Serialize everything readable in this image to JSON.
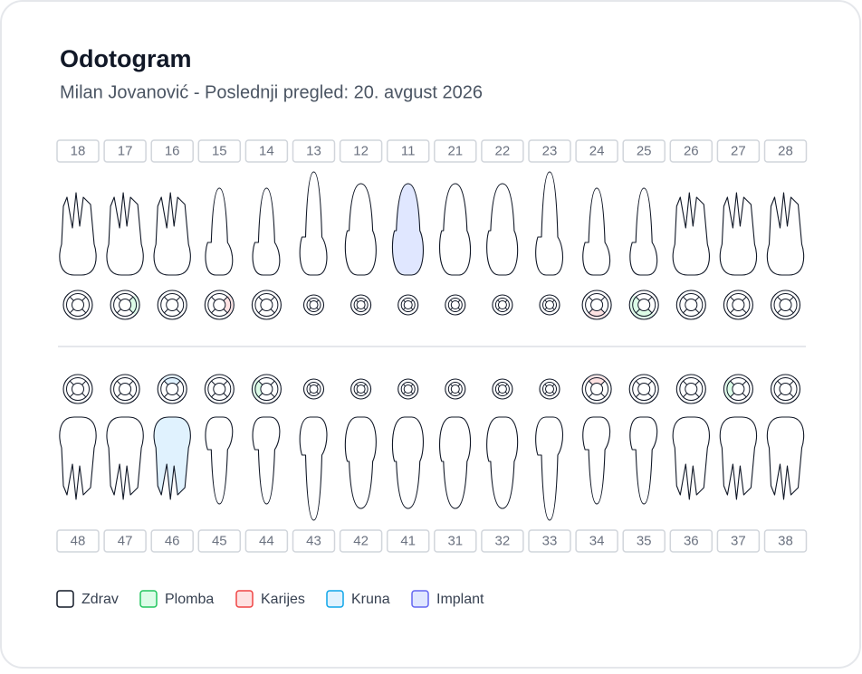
{
  "header": {
    "title": "Odotogram",
    "subtitle": "Milan Jovanović - Poslednji pregled: 20. avgust 2026"
  },
  "upper": [
    {
      "number": "18"
    },
    {
      "number": "17",
      "surfaces": {
        "right": "#dcfce7"
      }
    },
    {
      "number": "16"
    },
    {
      "number": "15",
      "surfaces": {
        "right": "#fee2e2"
      }
    },
    {
      "number": "14"
    },
    {
      "number": "13"
    },
    {
      "number": "12"
    },
    {
      "number": "11",
      "crown": "#e0e7ff"
    },
    {
      "number": "21"
    },
    {
      "number": "22"
    },
    {
      "number": "23"
    },
    {
      "number": "24",
      "surfaces": {
        "bottom": "#fee2e2"
      }
    },
    {
      "number": "25",
      "surfaces": {
        "bottom": "#dcfce7",
        "left": "#dcfce7"
      }
    },
    {
      "number": "26"
    },
    {
      "number": "27"
    },
    {
      "number": "28"
    }
  ],
  "lower": [
    {
      "number": "48"
    },
    {
      "number": "47"
    },
    {
      "number": "46",
      "crown": "#e0f2fe",
      "surfaces": {
        "top": "#e0f2fe"
      }
    },
    {
      "number": "45"
    },
    {
      "number": "44",
      "surfaces": {
        "left": "#dcfce7"
      }
    },
    {
      "number": "43"
    },
    {
      "number": "42"
    },
    {
      "number": "41"
    },
    {
      "number": "31"
    },
    {
      "number": "32"
    },
    {
      "number": "33"
    },
    {
      "number": "34",
      "surfaces": {
        "top": "#fee2e2"
      }
    },
    {
      "number": "35"
    },
    {
      "number": "36"
    },
    {
      "number": "37",
      "surfaces": {
        "left": "#dcfce7"
      }
    },
    {
      "number": "38"
    }
  ],
  "legend": [
    {
      "label": "Zdrav",
      "color": "#111827",
      "fill": "#ffffff"
    },
    {
      "label": "Plomba",
      "color": "#22c55e",
      "fill": "#dcfce7"
    },
    {
      "label": "Karijes",
      "color": "#ef4444",
      "fill": "#fee2e2"
    },
    {
      "label": "Kruna",
      "color": "#0ea5e9",
      "fill": "#e0f2fe"
    },
    {
      "label": "Implant",
      "color": "#6366f1",
      "fill": "#e0e7ff"
    }
  ]
}
